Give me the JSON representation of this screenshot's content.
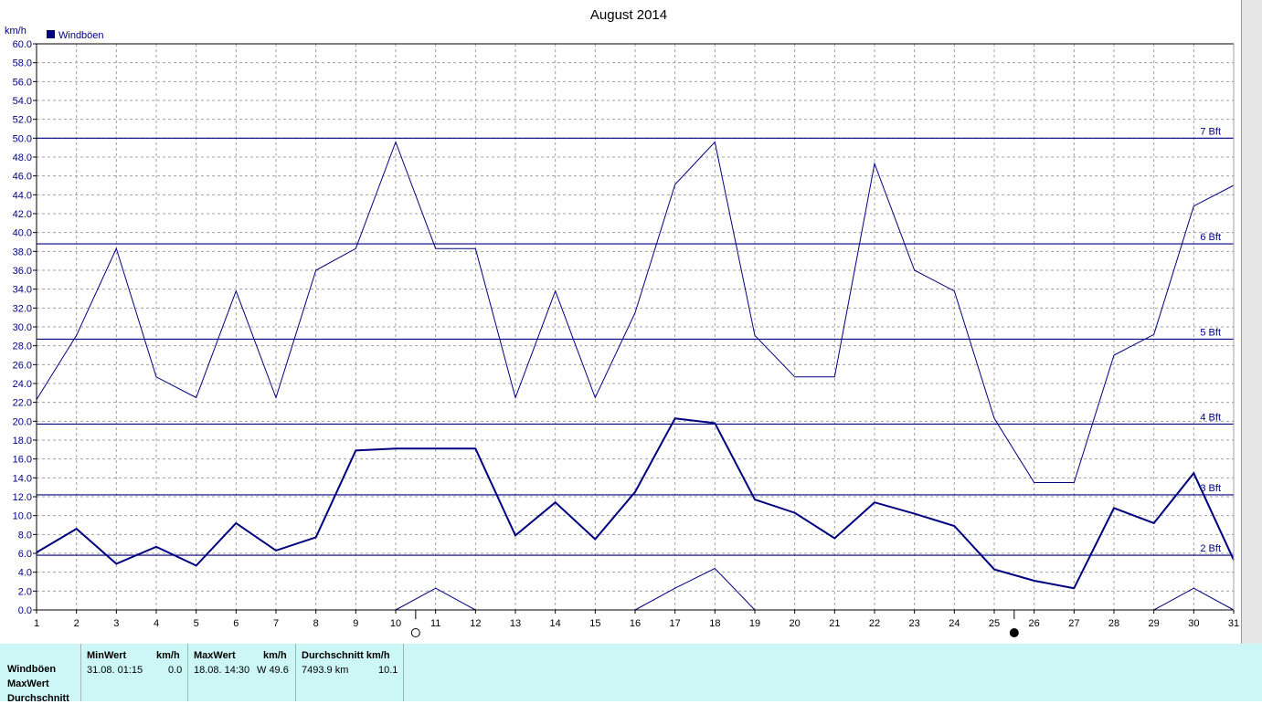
{
  "title": "August 2014",
  "y_unit": "km/h",
  "legend": {
    "label": "Windböen",
    "color": "#000080"
  },
  "colors": {
    "line": "#000080",
    "grid": "#a0a0a0",
    "panel": "#cdf6f6"
  },
  "chart_data": {
    "type": "line",
    "title": "August 2014",
    "ylabel": "km/h",
    "x": [
      1,
      2,
      3,
      4,
      5,
      6,
      7,
      8,
      9,
      10,
      11,
      12,
      13,
      14,
      15,
      16,
      17,
      18,
      19,
      20,
      21,
      22,
      23,
      24,
      25,
      26,
      27,
      28,
      29,
      30,
      31
    ],
    "xlim": [
      1,
      31
    ],
    "ylim": [
      0,
      60
    ],
    "y_ticks": [
      "0.0",
      "2.0",
      "4.0",
      "6.0",
      "8.0",
      "10.0",
      "12.0",
      "14.0",
      "16.0",
      "18.0",
      "20.0",
      "22.0",
      "24.0",
      "26.0",
      "28.0",
      "30.0",
      "32.0",
      "34.0",
      "36.0",
      "38.0",
      "40.0",
      "42.0",
      "44.0",
      "46.0",
      "48.0",
      "50.0",
      "52.0",
      "54.0",
      "56.0",
      "58.0",
      "60.0"
    ],
    "grid": true,
    "legend_position": "top-left",
    "series": [
      {
        "name": "Windböen",
        "role": "max",
        "values": [
          22.3,
          29.1,
          38.3,
          24.7,
          22.5,
          33.8,
          22.5,
          36.0,
          38.3,
          49.6,
          38.3,
          38.3,
          22.5,
          33.8,
          22.5,
          31.5,
          45.1,
          49.6,
          29.1,
          24.7,
          24.7,
          47.3,
          36.0,
          33.8,
          20.3,
          13.5,
          13.5,
          27.0,
          29.2,
          42.8,
          45.0
        ]
      },
      {
        "role": "avg",
        "values": [
          6.1,
          8.6,
          4.9,
          6.7,
          4.7,
          9.2,
          6.3,
          7.7,
          16.9,
          17.1,
          17.1,
          17.1,
          7.9,
          11.4,
          7.5,
          12.5,
          20.3,
          19.8,
          11.7,
          10.3,
          7.6,
          11.4,
          10.2,
          8.9,
          4.3,
          3.1,
          2.3,
          10.8,
          9.2,
          14.5,
          5.3
        ]
      },
      {
        "role": "min",
        "values": [
          null,
          null,
          null,
          null,
          null,
          null,
          null,
          null,
          null,
          0.0,
          2.3,
          0.0,
          null,
          null,
          null,
          0.0,
          2.3,
          4.4,
          0.0,
          null,
          null,
          null,
          null,
          null,
          null,
          null,
          null,
          null,
          0.0,
          2.3,
          0.0
        ]
      }
    ],
    "reference_lines": [
      {
        "label": "2 Bft",
        "value": 5.8
      },
      {
        "label": "3 Bft",
        "value": 12.2
      },
      {
        "label": "4 Bft",
        "value": 19.7
      },
      {
        "label": "5 Bft",
        "value": 28.7
      },
      {
        "label": "6 Bft",
        "value": 38.8
      },
      {
        "label": "7 Bft",
        "value": 50.0
      }
    ],
    "moon_phases": [
      {
        "day": 11,
        "phase": "full",
        "icon": "full-moon-icon"
      },
      {
        "day": 26,
        "phase": "new",
        "icon": "new-moon-icon"
      }
    ]
  },
  "stats": {
    "row_labels": [
      "Windböen",
      "MaxWert",
      "Durchschnitt"
    ],
    "min": {
      "header": "MinWert",
      "unit": "km/h",
      "date": "31.08.  01:15",
      "value": "0.0"
    },
    "max": {
      "header": "MaxWert",
      "unit": "km/h",
      "date": "18.08.  14:30",
      "value": "W 49.6"
    },
    "avg": {
      "header": "Durchschnitt km/h",
      "distance": "7493.9 km",
      "value": "10.1"
    }
  }
}
